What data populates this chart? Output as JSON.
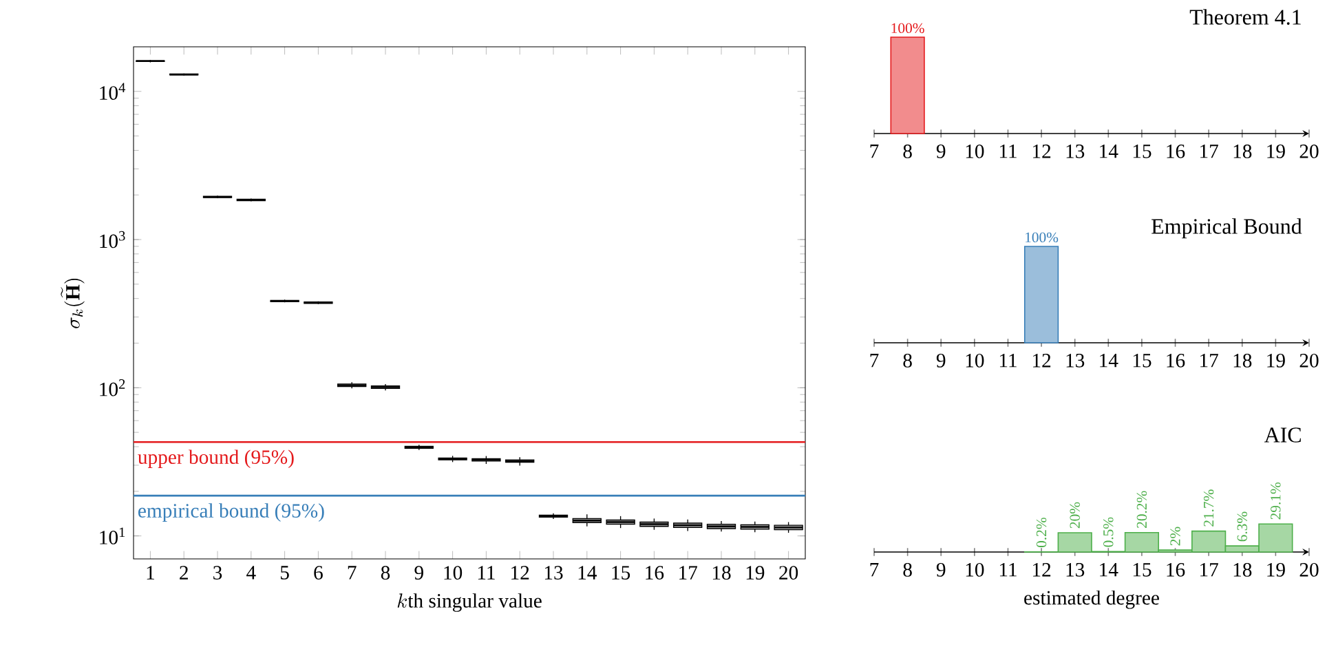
{
  "chart_data": [
    {
      "type": "box",
      "categories": [
        "1",
        "2",
        "3",
        "4",
        "5",
        "6",
        "7",
        "8",
        "9",
        "10",
        "11",
        "12",
        "13",
        "14",
        "15",
        "16",
        "17",
        "18",
        "19",
        "20"
      ],
      "boxes": [
        {
          "low": 15700,
          "q1": 15900,
          "median": 16000,
          "q3": 16100,
          "high": 16300
        },
        {
          "low": 12800,
          "q1": 12900,
          "median": 13000,
          "q3": 13100,
          "high": 13200
        },
        {
          "low": 1900,
          "q1": 1920,
          "median": 1940,
          "q3": 1960,
          "high": 1980
        },
        {
          "low": 1810,
          "q1": 1830,
          "median": 1850,
          "q3": 1870,
          "high": 1890
        },
        {
          "low": 377,
          "q1": 381,
          "median": 385,
          "q3": 389,
          "high": 393
        },
        {
          "low": 367,
          "q1": 371,
          "median": 375,
          "q3": 379,
          "high": 383
        },
        {
          "low": 99,
          "q1": 102,
          "median": 104,
          "q3": 106,
          "high": 109
        },
        {
          "low": 96,
          "q1": 99,
          "median": 101,
          "q3": 103,
          "high": 106
        },
        {
          "low": 38.0,
          "q1": 39.0,
          "median": 39.6,
          "q3": 40.2,
          "high": 41.2
        },
        {
          "low": 31.5,
          "q1": 32.6,
          "median": 33.1,
          "q3": 33.6,
          "high": 34.7
        },
        {
          "low": 30.6,
          "q1": 32.0,
          "median": 32.6,
          "q3": 33.2,
          "high": 34.6
        },
        {
          "low": 29.8,
          "q1": 31.4,
          "median": 32.0,
          "q3": 32.6,
          "high": 34.0
        },
        {
          "low": 13.0,
          "q1": 13.4,
          "median": 13.6,
          "q3": 13.8,
          "high": 14.2
        },
        {
          "low": 11.6,
          "q1": 12.3,
          "median": 12.7,
          "q3": 13.1,
          "high": 14.0
        },
        {
          "low": 11.3,
          "q1": 12.0,
          "median": 12.4,
          "q3": 12.8,
          "high": 13.6
        },
        {
          "low": 11.0,
          "q1": 11.6,
          "median": 12.0,
          "q3": 12.4,
          "high": 13.1
        },
        {
          "low": 10.8,
          "q1": 11.4,
          "median": 11.8,
          "q3": 12.2,
          "high": 12.9
        },
        {
          "low": 10.7,
          "q1": 11.2,
          "median": 11.6,
          "q3": 12.0,
          "high": 12.6
        },
        {
          "low": 10.6,
          "q1": 11.1,
          "median": 11.5,
          "q3": 11.9,
          "high": 12.5
        },
        {
          "low": 10.5,
          "q1": 11.0,
          "median": 11.4,
          "q3": 11.8,
          "high": 12.4
        }
      ],
      "log": true,
      "ylim": [
        7,
        20000
      ],
      "yticks": [
        {
          "value": 10,
          "label": "10$^{1}$"
        },
        {
          "value": 100,
          "label": "10$^{2}$"
        },
        {
          "value": 1000,
          "label": "10$^{3}$"
        },
        {
          "value": 10000,
          "label": "10$^{4}$"
        }
      ],
      "xlabel": "k\\mbox{th singular value}",
      "ylabel": "\\sigma_k(\\widetilde{\\mathbf{H}})",
      "ref_lines": [
        {
          "axis": "y",
          "value": 43,
          "label": "upper bound (95%)",
          "color": "#e41a1c"
        },
        {
          "axis": "y",
          "value": 18.7,
          "label": "empirical bound (95%)",
          "color": "#377eb8"
        }
      ]
    },
    {
      "type": "bar",
      "title": "Theorem 4.1",
      "x": [
        8
      ],
      "values": [
        100
      ],
      "value_labels": [
        "100%"
      ],
      "color": "#e41a1c",
      "xlim": [
        7,
        20
      ],
      "xticks": [
        7,
        8,
        9,
        10,
        11,
        12,
        13,
        14,
        15,
        16,
        17,
        18,
        19,
        20
      ],
      "tick_labels": "x"
    },
    {
      "type": "bar",
      "title": "Empirical Bound",
      "x": [
        12
      ],
      "values": [
        100
      ],
      "value_labels": [
        "100%"
      ],
      "color": "#377eb8",
      "xlim": [
        7,
        20
      ],
      "xticks": [
        7,
        8,
        9,
        10,
        11,
        12,
        13,
        14,
        15,
        16,
        17,
        18,
        19,
        20
      ],
      "tick_labels": "x"
    },
    {
      "type": "bar",
      "title": "AIC",
      "x": [
        12,
        13,
        14,
        15,
        16,
        17,
        18,
        19
      ],
      "values": [
        0.2,
        20,
        0.5,
        20.2,
        2,
        21.7,
        6.3,
        29.1
      ],
      "value_labels": [
        "0.2%",
        "20%",
        "0.5%",
        "20.2%",
        "2%",
        "21.7%",
        "6.3%",
        "29.1%"
      ],
      "color": "#4daf4a",
      "xlim": [
        7,
        20
      ],
      "xticks": [
        7,
        8,
        9,
        10,
        11,
        12,
        13,
        14,
        15,
        16,
        17,
        18,
        19,
        20
      ],
      "tick_labels": "x",
      "xlabel": "estimated degree"
    }
  ]
}
